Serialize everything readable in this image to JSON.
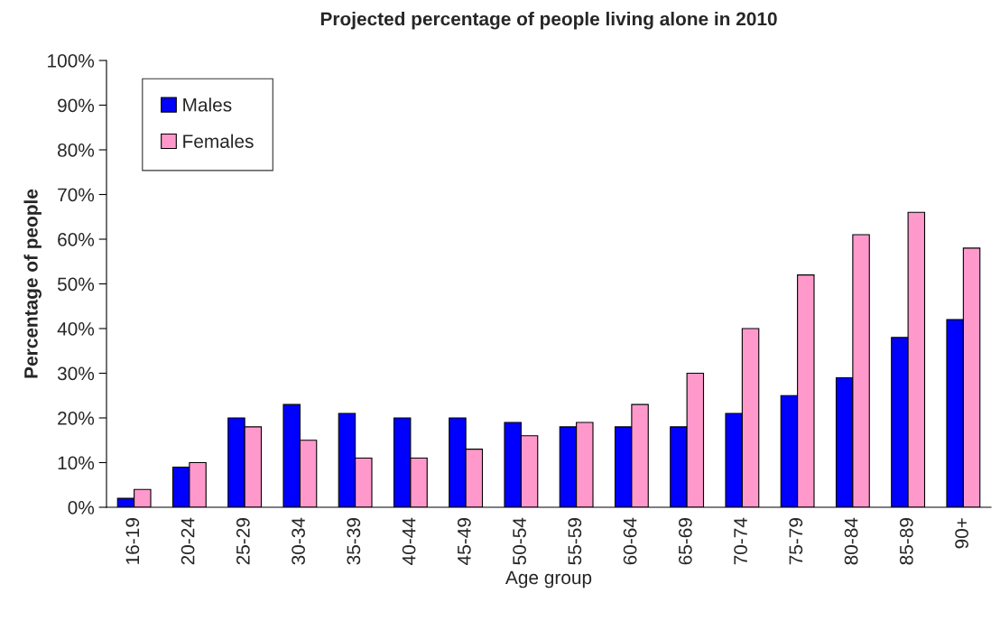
{
  "chart_data": {
    "type": "bar",
    "title": "Projected percentage of people living alone in 2010",
    "xlabel": "Age group",
    "ylabel": "Percentage of people",
    "categories": [
      "16-19",
      "20-24",
      "25-29",
      "30-34",
      "35-39",
      "40-44",
      "45-49",
      "50-54",
      "55-59",
      "60-64",
      "65-69",
      "70-74",
      "75-79",
      "80-84",
      "85-89",
      "90+"
    ],
    "series": [
      {
        "name": "Males",
        "color": "#0000ff",
        "values": [
          2,
          9,
          20,
          23,
          21,
          20,
          20,
          19,
          18,
          18,
          18,
          21,
          25,
          29,
          38,
          42
        ]
      },
      {
        "name": "Females",
        "color": "#ff99cc",
        "values": [
          4,
          10,
          18,
          15,
          11,
          11,
          13,
          16,
          19,
          23,
          30,
          40,
          52,
          61,
          66,
          58
        ]
      }
    ],
    "ylim": [
      0,
      100
    ],
    "yticks": [
      {
        "value": 0,
        "label": "0%"
      },
      {
        "value": 10,
        "label": "10%"
      },
      {
        "value": 20,
        "label": "20%"
      },
      {
        "value": 30,
        "label": "30%"
      },
      {
        "value": 40,
        "label": "40%"
      },
      {
        "value": 50,
        "label": "50%"
      },
      {
        "value": 60,
        "label": "60%"
      },
      {
        "value": 70,
        "label": "70%"
      },
      {
        "value": 80,
        "label": "80%"
      },
      {
        "value": 90,
        "label": "90%"
      },
      {
        "value": 100,
        "label": "100%"
      }
    ],
    "grid": false,
    "legend": "top left"
  }
}
